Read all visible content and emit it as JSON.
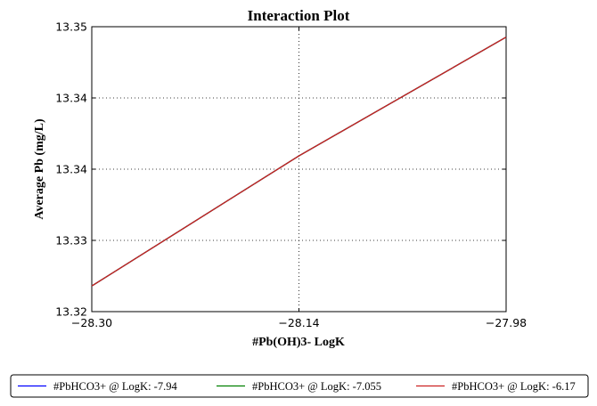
{
  "chart_data": {
    "type": "line",
    "title": "Interaction Plot",
    "xlabel": "#Pb(OH)3- LogK",
    "ylabel": "Average Pb (mg/L)",
    "xlim": [
      -28.3,
      -27.98
    ],
    "ylim": [
      13.32,
      13.35
    ],
    "x_ticks": [
      -28.3,
      -28.14,
      -27.98
    ],
    "x_tick_labels": [
      "−28.30",
      "−28.14",
      "−27.98"
    ],
    "y_ticks": [
      13.32,
      13.3275,
      13.335,
      13.3425,
      13.35
    ],
    "y_tick_labels": [
      "13.32",
      "13.33",
      "13.34",
      "13.34",
      "13.35"
    ],
    "grid": true,
    "legend_position": "bottom",
    "x": [
      -28.3,
      -28.14,
      -27.98
    ],
    "series": [
      {
        "name": "#PbHCO3+ @ LogK: -7.94",
        "color": "#0000ff",
        "values": [
          13.3227,
          13.3364,
          13.3489
        ]
      },
      {
        "name": "#PbHCO3+ @ LogK: -7.055",
        "color": "#008000",
        "values": [
          13.3227,
          13.3364,
          13.3489
        ]
      },
      {
        "name": "#PbHCO3+ @ LogK: -6.17",
        "color": "#cc2222",
        "values": [
          13.3227,
          13.3364,
          13.3489
        ]
      }
    ]
  }
}
